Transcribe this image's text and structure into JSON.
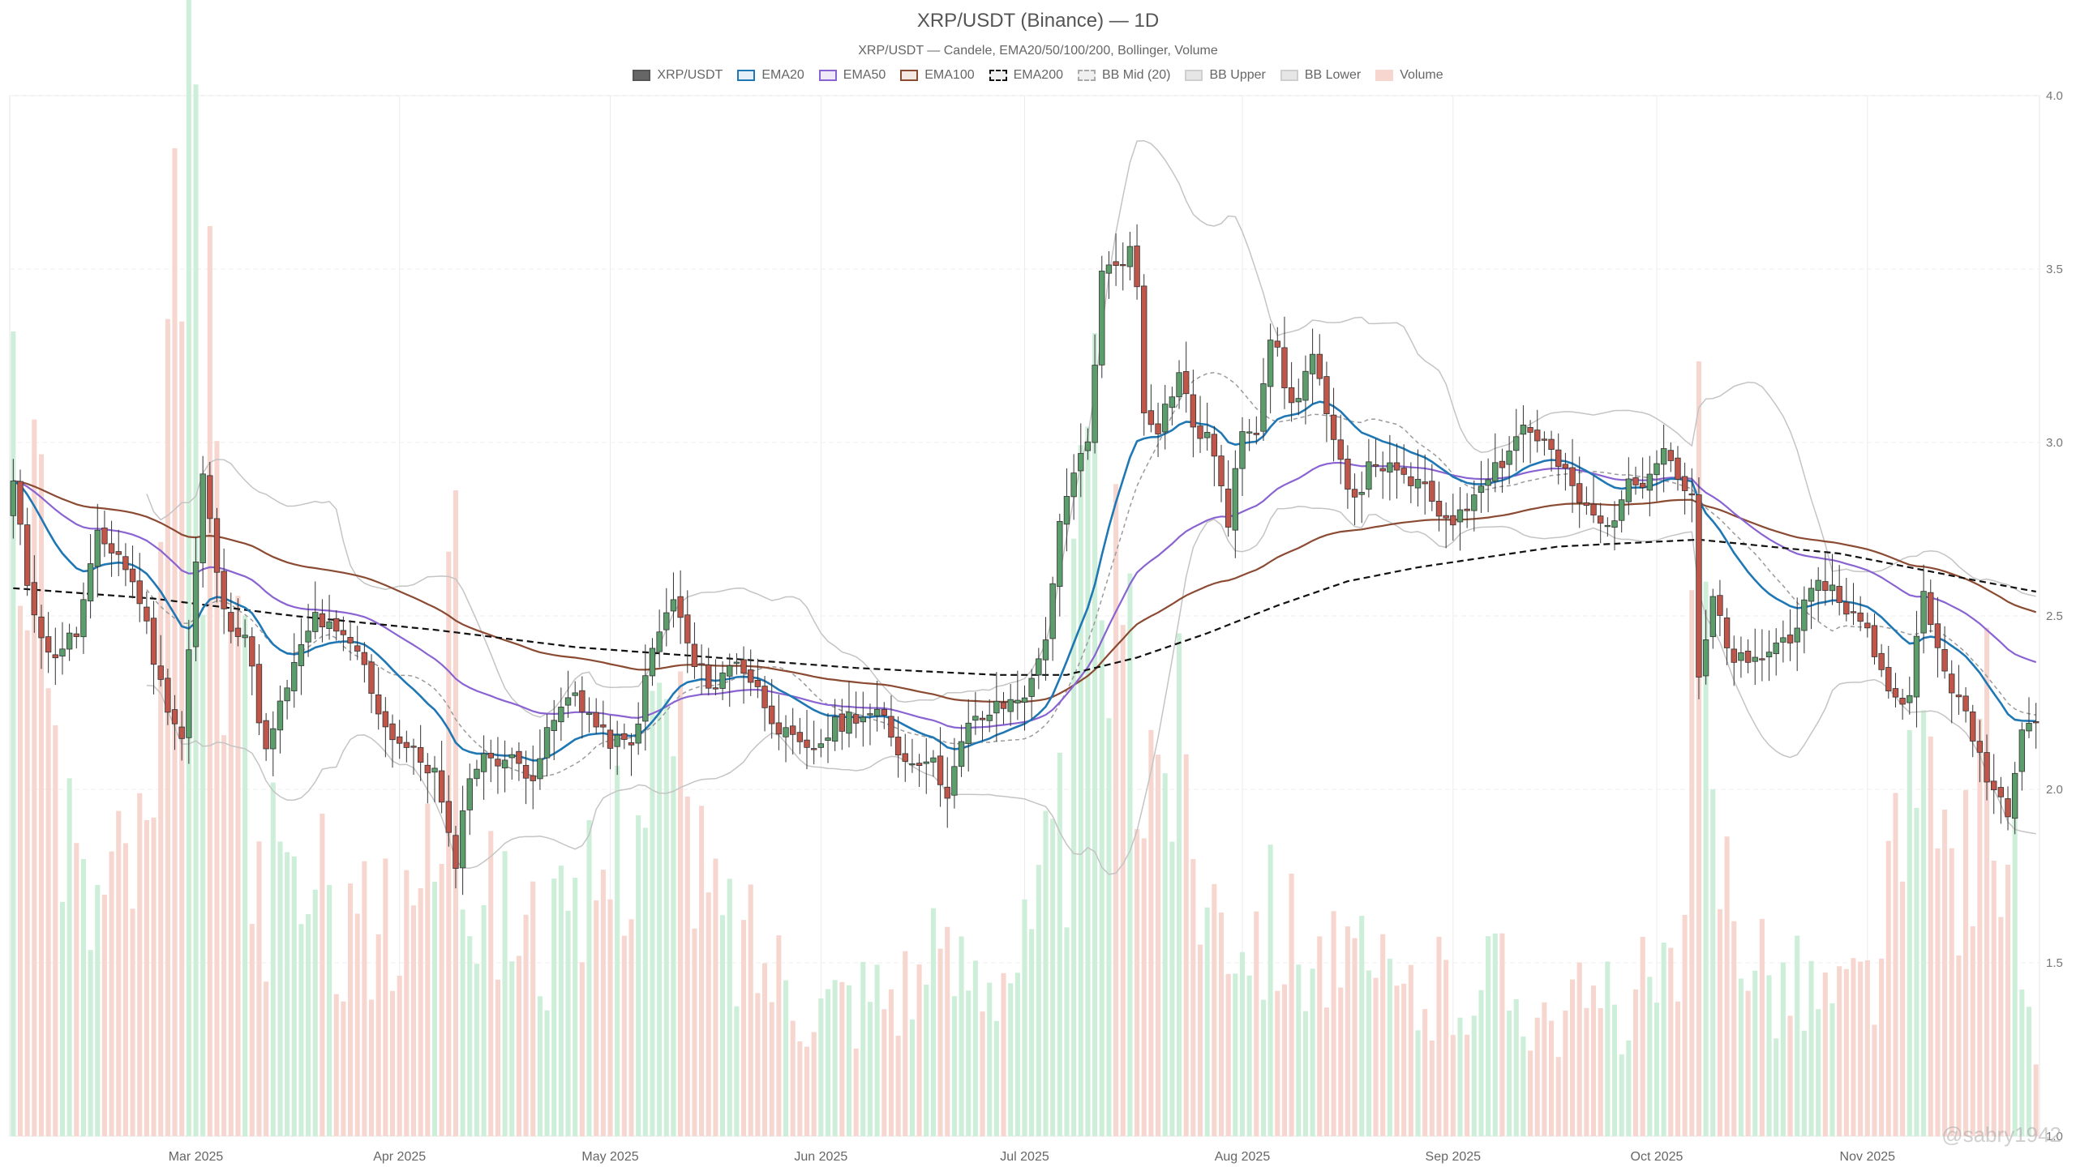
{
  "chart_data": {
    "type": "candlestick",
    "title": "XRP/USDT (Binance) — 1D",
    "subtitle": "XRP/USDT — Candele, EMA20/50/100/200, Bollinger, Volume",
    "legend": {
      "placement": "top-center",
      "items": [
        "XRP/USDT",
        "EMA20",
        "EMA50",
        "EMA100",
        "EMA200",
        "BB Mid (20)",
        "BB Upper",
        "BB Lower",
        "Volume"
      ]
    },
    "x_tick_labels": [
      "Mar 2025",
      "Apr 2025",
      "May 2025",
      "Jun 2025",
      "Jul 2025",
      "Aug 2025",
      "Sep 2025",
      "Oct 2025",
      "Nov 2025"
    ],
    "x_tick_index": [
      26,
      55,
      85,
      115,
      144,
      175,
      205,
      234,
      264
    ],
    "y_ticks": [
      1.0,
      1.5,
      2.0,
      2.5,
      3.0,
      3.5,
      4.0
    ],
    "y_tick_labels": [
      "1.0",
      "1.5",
      "2.0",
      "2.5",
      "3.0",
      "3.5",
      "4.0"
    ],
    "ylim": [
      1.0,
      4.0
    ],
    "grid": true,
    "colors": {
      "up": "#5b9e6b",
      "down": "#c0564a",
      "candle_edge": "#333333",
      "ema20": "#1f77b4",
      "ema50": "#8a63d2",
      "ema100": "#8b4a32",
      "ema200": "#111111",
      "bb_mid": "#9a9a9a",
      "bb_band": "#c4c4c4",
      "vol_up": "#cdeed8",
      "vol_down": "#f6d6cf"
    },
    "close_anchors": [
      [
        0,
        2.88
      ],
      [
        2,
        2.6
      ],
      [
        5,
        2.38
      ],
      [
        9,
        2.45
      ],
      [
        12,
        2.72
      ],
      [
        15,
        2.68
      ],
      [
        18,
        2.55
      ],
      [
        21,
        2.3
      ],
      [
        24,
        2.15
      ],
      [
        27,
        2.9
      ],
      [
        30,
        2.5
      ],
      [
        33,
        2.45
      ],
      [
        36,
        2.1
      ],
      [
        39,
        2.3
      ],
      [
        43,
        2.5
      ],
      [
        46,
        2.44
      ],
      [
        49,
        2.4
      ],
      [
        53,
        2.18
      ],
      [
        57,
        2.1
      ],
      [
        60,
        2.05
      ],
      [
        62,
        1.85
      ],
      [
        63,
        1.8
      ],
      [
        65,
        2.05
      ],
      [
        68,
        2.1
      ],
      [
        71,
        2.08
      ],
      [
        74,
        2.05
      ],
      [
        77,
        2.2
      ],
      [
        80,
        2.28
      ],
      [
        84,
        2.15
      ],
      [
        88,
        2.12
      ],
      [
        91,
        2.4
      ],
      [
        94,
        2.55
      ],
      [
        97,
        2.35
      ],
      [
        100,
        2.3
      ],
      [
        103,
        2.38
      ],
      [
        107,
        2.25
      ],
      [
        110,
        2.15
      ],
      [
        113,
        2.1
      ],
      [
        117,
        2.18
      ],
      [
        120,
        2.22
      ],
      [
        124,
        2.2
      ],
      [
        127,
        2.08
      ],
      [
        130,
        2.1
      ],
      [
        133,
        2.0
      ],
      [
        136,
        2.18
      ],
      [
        139,
        2.22
      ],
      [
        142,
        2.25
      ],
      [
        145,
        2.3
      ],
      [
        147,
        2.45
      ],
      [
        149,
        2.75
      ],
      [
        151,
        2.9
      ],
      [
        153,
        3.0
      ],
      [
        155,
        3.48
      ],
      [
        157,
        3.52
      ],
      [
        159,
        3.55
      ],
      [
        160,
        3.45
      ],
      [
        161,
        3.1
      ],
      [
        163,
        3.05
      ],
      [
        166,
        3.2
      ],
      [
        168,
        3.05
      ],
      [
        171,
        2.98
      ],
      [
        173,
        2.75
      ],
      [
        175,
        3.05
      ],
      [
        177,
        3.05
      ],
      [
        179,
        3.32
      ],
      [
        182,
        3.1
      ],
      [
        185,
        3.25
      ],
      [
        188,
        2.98
      ],
      [
        191,
        2.85
      ],
      [
        194,
        2.95
      ],
      [
        197,
        2.9
      ],
      [
        200,
        2.88
      ],
      [
        203,
        2.8
      ],
      [
        206,
        2.78
      ],
      [
        209,
        2.9
      ],
      [
        212,
        2.95
      ],
      [
        215,
        3.05
      ],
      [
        218,
        3.0
      ],
      [
        221,
        2.9
      ],
      [
        224,
        2.8
      ],
      [
        227,
        2.75
      ],
      [
        229,
        2.85
      ],
      [
        232,
        2.9
      ],
      [
        235,
        3.0
      ],
      [
        237,
        2.9
      ],
      [
        239,
        2.85
      ],
      [
        240,
        2.3
      ],
      [
        242,
        2.55
      ],
      [
        244,
        2.4
      ],
      [
        247,
        2.35
      ],
      [
        250,
        2.4
      ],
      [
        253,
        2.45
      ],
      [
        256,
        2.55
      ],
      [
        258,
        2.6
      ],
      [
        260,
        2.55
      ],
      [
        262,
        2.5
      ],
      [
        264,
        2.45
      ],
      [
        266,
        2.35
      ],
      [
        268,
        2.25
      ],
      [
        270,
        2.3
      ],
      [
        272,
        2.55
      ],
      [
        274,
        2.4
      ],
      [
        276,
        2.3
      ],
      [
        278,
        2.2
      ],
      [
        280,
        2.1
      ],
      [
        282,
        2.0
      ],
      [
        284,
        1.95
      ],
      [
        286,
        2.2
      ],
      [
        288,
        2.2
      ]
    ],
    "ema200_anchors": [
      [
        0,
        2.58
      ],
      [
        20,
        2.55
      ],
      [
        40,
        2.5
      ],
      [
        60,
        2.46
      ],
      [
        80,
        2.41
      ],
      [
        100,
        2.38
      ],
      [
        120,
        2.35
      ],
      [
        140,
        2.33
      ],
      [
        150,
        2.33
      ],
      [
        160,
        2.38
      ],
      [
        170,
        2.45
      ],
      [
        180,
        2.53
      ],
      [
        190,
        2.6
      ],
      [
        200,
        2.64
      ],
      [
        210,
        2.67
      ],
      [
        220,
        2.7
      ],
      [
        230,
        2.71
      ],
      [
        240,
        2.72
      ],
      [
        250,
        2.7
      ],
      [
        260,
        2.68
      ],
      [
        270,
        2.64
      ],
      [
        280,
        2.6
      ],
      [
        288,
        2.57
      ]
    ],
    "volume_anchors": [
      [
        0,
        320
      ],
      [
        1,
        280
      ],
      [
        2,
        210
      ],
      [
        10,
        85
      ],
      [
        20,
        110
      ],
      [
        22,
        230
      ],
      [
        25,
        330
      ],
      [
        27,
        270
      ],
      [
        35,
        95
      ],
      [
        45,
        85
      ],
      [
        55,
        70
      ],
      [
        60,
        120
      ],
      [
        63,
        170
      ],
      [
        65,
        90
      ],
      [
        80,
        70
      ],
      [
        92,
        150
      ],
      [
        100,
        80
      ],
      [
        115,
        50
      ],
      [
        130,
        60
      ],
      [
        145,
        70
      ],
      [
        150,
        120
      ],
      [
        153,
        230
      ],
      [
        156,
        210
      ],
      [
        159,
        150
      ],
      [
        165,
        150
      ],
      [
        170,
        90
      ],
      [
        180,
        80
      ],
      [
        190,
        60
      ],
      [
        200,
        50
      ],
      [
        210,
        60
      ],
      [
        220,
        45
      ],
      [
        230,
        50
      ],
      [
        238,
        60
      ],
      [
        240,
        230
      ],
      [
        242,
        110
      ],
      [
        250,
        60
      ],
      [
        260,
        50
      ],
      [
        265,
        60
      ],
      [
        270,
        120
      ],
      [
        278,
        100
      ],
      [
        282,
        150
      ],
      [
        286,
        70
      ],
      [
        288,
        20
      ]
    ],
    "volume_axis_max": 380,
    "n_days": 289
  },
  "watermark": "@sabry1942"
}
